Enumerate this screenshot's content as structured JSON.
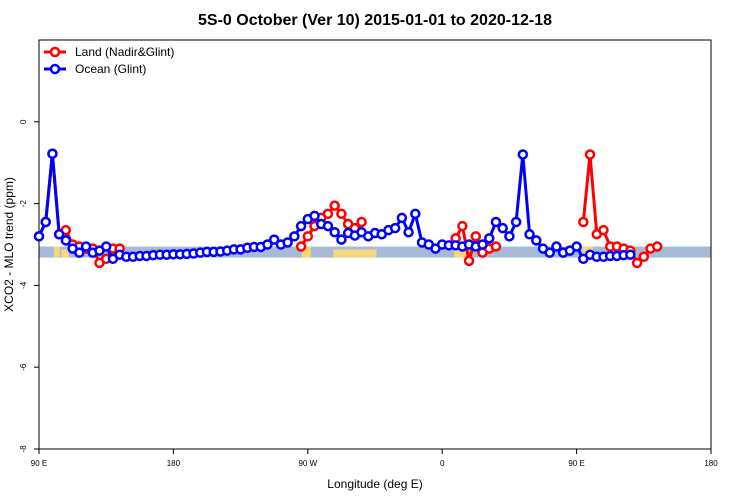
{
  "chart_data": {
    "type": "line",
    "title": "5S-0 October (Ver 10)   2015-01-01 to 2020-12-18",
    "xlabel": "Longitude (deg E)",
    "ylabel": "XCO2 - MLO trend (ppm)",
    "xlim": [
      90,
      540
    ],
    "ylim": [
      -8,
      2
    ],
    "x_ticks": [
      {
        "value": 90,
        "label": "90 E"
      },
      {
        "value": 180,
        "label": "180"
      },
      {
        "value": 270,
        "label": "90 W"
      },
      {
        "value": 360,
        "label": "0"
      },
      {
        "value": 450,
        "label": "90 E"
      },
      {
        "value": 540,
        "label": "180"
      }
    ],
    "y_ticks": [
      {
        "value": 0,
        "label": "0"
      },
      {
        "value": -2,
        "label": "-2"
      },
      {
        "value": -4,
        "label": "-4"
      },
      {
        "value": -6,
        "label": "-6"
      },
      {
        "value": -8,
        "label": "-8"
      }
    ],
    "grid": false,
    "legend_position": "top-left",
    "colors": {
      "land": "#ff0000",
      "ocean": "#0000ff",
      "map_ocean": "#a7bbd9",
      "map_land": "#f5d77c"
    },
    "series": [
      {
        "name": "Land (Nadir&Glint)",
        "color": "#ff0000",
        "segments": [
          [
            [
              90,
              -2.8
            ],
            [
              94.5,
              -2.45
            ],
            [
              99,
              -0.78
            ],
            [
              103.5,
              -2.75
            ],
            [
              108,
              -2.65
            ],
            [
              112.5,
              -3.0
            ],
            [
              117,
              -3.05
            ],
            [
              121.5,
              -3.1
            ],
            [
              126,
              -3.1
            ],
            [
              130.5,
              -3.45
            ],
            [
              135,
              -3.35
            ],
            [
              139.5,
              -3.1
            ],
            [
              144,
              -3.1
            ]
          ],
          [
            [
              265.5,
              -3.05
            ],
            [
              270,
              -2.8
            ],
            [
              274.5,
              -2.55
            ],
            [
              279,
              -2.35
            ],
            [
              283.5,
              -2.25
            ],
            [
              288,
              -2.05
            ],
            [
              292.5,
              -2.25
            ],
            [
              297,
              -2.5
            ],
            [
              301.5,
              -2.6
            ],
            [
              306,
              -2.45
            ]
          ],
          [
            [
              369,
              -2.85
            ],
            [
              373.5,
              -2.55
            ],
            [
              378,
              -3.4
            ],
            [
              382.5,
              -2.8
            ],
            [
              387,
              -3.2
            ],
            [
              391.5,
              -3.1
            ],
            [
              396,
              -3.05
            ]
          ],
          [
            [
              454.5,
              -2.45
            ],
            [
              459,
              -0.8
            ],
            [
              463.5,
              -2.75
            ],
            [
              468,
              -2.65
            ],
            [
              472.5,
              -3.05
            ],
            [
              477,
              -3.05
            ],
            [
              481.5,
              -3.1
            ],
            [
              486,
              -3.15
            ],
            [
              490.5,
              -3.45
            ],
            [
              495,
              -3.3
            ],
            [
              499.5,
              -3.1
            ],
            [
              504,
              -3.05
            ]
          ]
        ]
      },
      {
        "name": "Ocean (Glint)",
        "color": "#0000ff",
        "segments": [
          [
            [
              90,
              -2.8
            ],
            [
              94.5,
              -2.45
            ],
            [
              99,
              -0.78
            ],
            [
              103.5,
              -2.75
            ],
            [
              108,
              -2.9
            ],
            [
              112.5,
              -3.1
            ],
            [
              117,
              -3.2
            ],
            [
              121.5,
              -3.05
            ],
            [
              126,
              -3.2
            ],
            [
              130.5,
              -3.15
            ],
            [
              135,
              -3.05
            ],
            [
              139.5,
              -3.35
            ],
            [
              144,
              -3.25
            ],
            [
              148.5,
              -3.3
            ],
            [
              153,
              -3.3
            ],
            [
              157.5,
              -3.28
            ],
            [
              162,
              -3.28
            ],
            [
              166.5,
              -3.26
            ],
            [
              171,
              -3.25
            ],
            [
              175.5,
              -3.25
            ],
            [
              180,
              -3.24
            ],
            [
              184.5,
              -3.24
            ],
            [
              189,
              -3.23
            ],
            [
              193.5,
              -3.22
            ],
            [
              198,
              -3.2
            ],
            [
              202.5,
              -3.18
            ],
            [
              207,
              -3.18
            ],
            [
              211.5,
              -3.17
            ],
            [
              216,
              -3.15
            ],
            [
              220.5,
              -3.12
            ],
            [
              225,
              -3.12
            ],
            [
              229.5,
              -3.08
            ],
            [
              234,
              -3.06
            ],
            [
              238.5,
              -3.06
            ],
            [
              243,
              -3.0
            ],
            [
              247.5,
              -2.88
            ],
            [
              252,
              -3.0
            ],
            [
              256.5,
              -2.95
            ],
            [
              261,
              -2.8
            ],
            [
              265.5,
              -2.55
            ],
            [
              270,
              -2.38
            ],
            [
              274.5,
              -2.3
            ],
            [
              279,
              -2.5
            ],
            [
              283.5,
              -2.55
            ],
            [
              288,
              -2.7
            ],
            [
              292.5,
              -2.88
            ],
            [
              297,
              -2.72
            ],
            [
              301.5,
              -2.78
            ],
            [
              306,
              -2.7
            ],
            [
              310.5,
              -2.8
            ],
            [
              315,
              -2.72
            ],
            [
              319.5,
              -2.75
            ],
            [
              324,
              -2.65
            ],
            [
              328.5,
              -2.6
            ],
            [
              333,
              -2.35
            ],
            [
              337.5,
              -2.7
            ],
            [
              342,
              -2.25
            ],
            [
              346.5,
              -2.95
            ],
            [
              351,
              -3.0
            ],
            [
              355.5,
              -3.1
            ],
            [
              360,
              -3.0
            ],
            [
              364.5,
              -3.02
            ],
            [
              369,
              -3.02
            ],
            [
              373.5,
              -3.05
            ],
            [
              378,
              -3.0
            ],
            [
              382.5,
              -3.05
            ],
            [
              387,
              -3.0
            ],
            [
              391.5,
              -2.85
            ],
            [
              396,
              -2.45
            ],
            [
              400.5,
              -2.6
            ],
            [
              405,
              -2.8
            ],
            [
              409.5,
              -2.45
            ],
            [
              414,
              -0.8
            ],
            [
              418.5,
              -2.75
            ],
            [
              423,
              -2.9
            ],
            [
              427.5,
              -3.1
            ],
            [
              432,
              -3.2
            ],
            [
              436.5,
              -3.05
            ],
            [
              441,
              -3.2
            ],
            [
              445.5,
              -3.15
            ],
            [
              450,
              -3.05
            ],
            [
              454.5,
              -3.35
            ],
            [
              459,
              -3.25
            ],
            [
              463.5,
              -3.3
            ],
            [
              468,
              -3.3
            ],
            [
              472.5,
              -3.28
            ],
            [
              477,
              -3.28
            ],
            [
              481.5,
              -3.26
            ],
            [
              486,
              -3.25
            ]
          ]
        ]
      }
    ],
    "map_band": {
      "y_top": -3.05,
      "y_bottom": -3.32,
      "land_ranges": [
        [
          100,
          104
        ],
        [
          105,
          110
        ],
        [
          266,
          272
        ],
        [
          287,
          316
        ],
        [
          368,
          376
        ],
        [
          377,
          380
        ],
        [
          454,
          461
        ]
      ]
    }
  }
}
